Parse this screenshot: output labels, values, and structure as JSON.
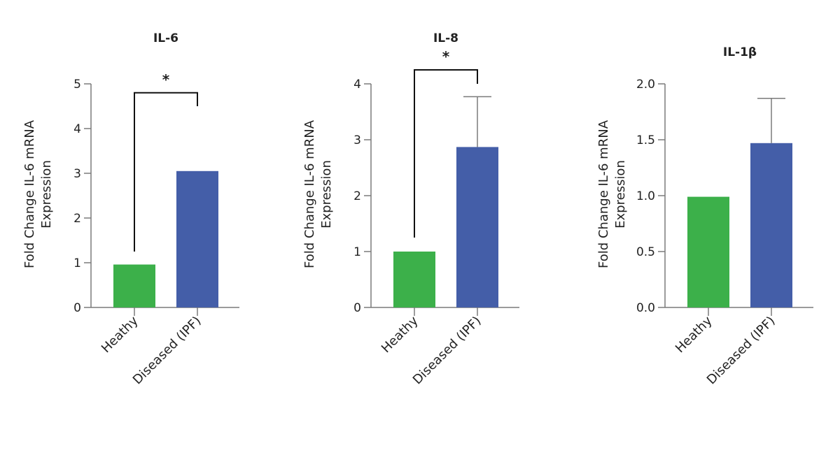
{
  "chart_data": [
    {
      "type": "bar",
      "title": "IL-6",
      "categories": [
        "Heathy",
        "Diseased (IPF)"
      ],
      "values": [
        0.96,
        3.05
      ],
      "errors": [
        null,
        null
      ],
      "colors": [
        "#3cb04a",
        "#445ea8"
      ],
      "ylabel_lines": [
        "Fold Change IL-6 mRNA",
        "Expression"
      ],
      "ylim": [
        0,
        5
      ],
      "yticks": [
        0,
        1,
        2,
        3,
        4,
        5
      ],
      "tick_labels": [
        "0",
        "1",
        "2",
        "3",
        "4",
        "5"
      ],
      "significance": {
        "label": "*",
        "from": 0,
        "to": 1,
        "bracket_y": 4.8,
        "left_drop_to": 1.25,
        "right_drop_to": 4.5
      }
    },
    {
      "type": "bar",
      "title": "IL-8",
      "categories": [
        "Heathy",
        "Diseased (IPF)"
      ],
      "values": [
        1.0,
        2.87
      ],
      "errors": [
        null,
        0.9
      ],
      "colors": [
        "#3cb04a",
        "#445ea8"
      ],
      "ylabel_lines": [
        "Fold Change IL-6 mRNA",
        "Expression"
      ],
      "ylim": [
        0,
        4
      ],
      "yticks": [
        0,
        1,
        2,
        3,
        4
      ],
      "tick_labels": [
        "0",
        "1",
        "2",
        "3",
        "4"
      ],
      "significance": {
        "label": "*",
        "from": 0,
        "to": 1,
        "bracket_y": 4.25,
        "left_drop_to": 1.25,
        "right_drop_to": 4.0
      }
    },
    {
      "type": "bar",
      "title": "IL-1β",
      "categories": [
        "Heathy",
        "Diseased (IPF)"
      ],
      "values": [
        0.99,
        1.47
      ],
      "errors": [
        null,
        0.4
      ],
      "colors": [
        "#3cb04a",
        "#445ea8"
      ],
      "ylabel_lines": [
        "Fold Change IL-6 mRNA",
        "Expression"
      ],
      "ylim": [
        0,
        2
      ],
      "yticks": [
        0,
        0.5,
        1,
        1.5,
        2
      ],
      "tick_labels": [
        "0.0",
        "0.5",
        "1.0",
        "1.5",
        "2.0"
      ],
      "significance": null
    }
  ]
}
